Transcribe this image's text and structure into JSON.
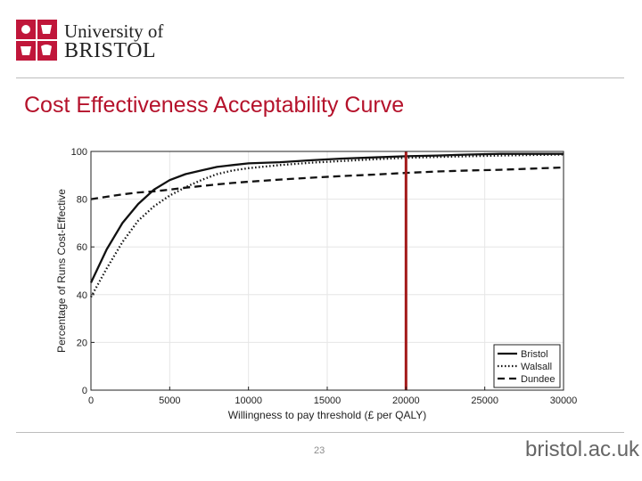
{
  "header": {
    "university_line1": "University of",
    "university_line2": "BRISTOL"
  },
  "slide": {
    "title": "Cost Effectiveness Acceptability Curve",
    "page_number": "23"
  },
  "footer": {
    "url": "bristol.ac.uk"
  },
  "colors": {
    "title": "#b5122b",
    "threshold_line": "#a31a1a",
    "logo_red": "#c0163a"
  },
  "chart_data": {
    "type": "line",
    "title": "",
    "xlabel": "Willingness to pay threshold (£ per QALY)",
    "ylabel": "Percentage of Runs Cost-Effective",
    "xlim": [
      0,
      30000
    ],
    "ylim": [
      0,
      100
    ],
    "xticks": [
      0,
      5000,
      10000,
      15000,
      20000,
      25000,
      30000
    ],
    "xtick_labels": [
      "0",
      "5000",
      "10000",
      "15000",
      "20000",
      "25000",
      "30000"
    ],
    "yticks": [
      0,
      20,
      40,
      60,
      80,
      100
    ],
    "ytick_labels": [
      "0",
      "20",
      "40",
      "60",
      "80",
      "100"
    ],
    "legend_position": "bottom-right",
    "threshold_x": 20000,
    "x": [
      0,
      1000,
      2000,
      3000,
      4000,
      5000,
      6000,
      7000,
      8000,
      9000,
      10000,
      12000,
      14000,
      16000,
      18000,
      20000,
      22000,
      24000,
      26000,
      28000,
      30000
    ],
    "series": [
      {
        "name": "Bristol",
        "style": "solid",
        "values": [
          45,
          59,
          70,
          78,
          84,
          88,
          90.5,
          92,
          93.5,
          94.3,
          95,
          95.5,
          96.3,
          97,
          97.5,
          98,
          98.3,
          98.7,
          99,
          99,
          99
        ]
      },
      {
        "name": "Walsall",
        "style": "dotted",
        "values": [
          39,
          51,
          62,
          71,
          77,
          81.5,
          85,
          88,
          90.5,
          92,
          93,
          94.3,
          95.3,
          96,
          96.7,
          97.3,
          97.7,
          98,
          98.3,
          98.5,
          98.7
        ]
      },
      {
        "name": "Dundee",
        "style": "dashed",
        "values": [
          80,
          81,
          82,
          82.8,
          83.3,
          84,
          84.8,
          85.5,
          86.2,
          86.8,
          87.3,
          88.2,
          89,
          89.7,
          90.3,
          91,
          91.6,
          92,
          92.3,
          92.8,
          93.3
        ]
      }
    ]
  }
}
